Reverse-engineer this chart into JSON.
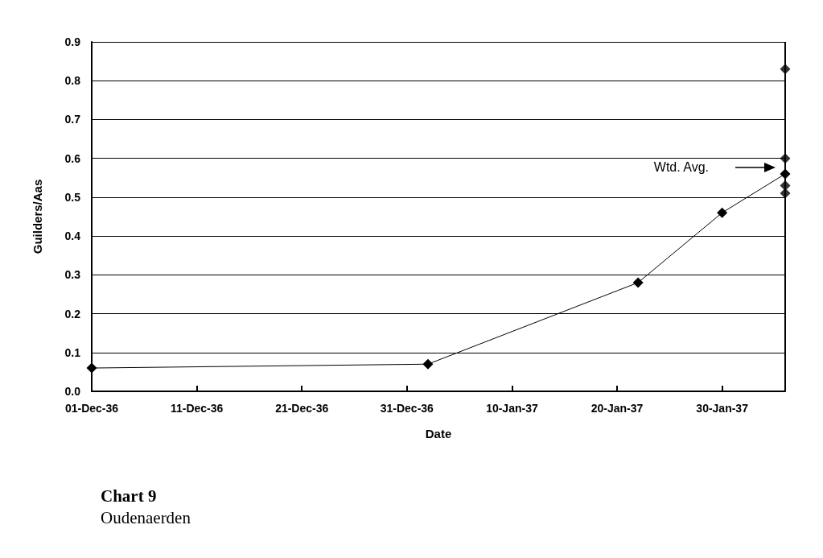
{
  "chart_data": {
    "type": "line",
    "title": "Chart 9",
    "subtitle": "Oudenaerden",
    "xlabel": "Date",
    "ylabel": "Guilders/Aas",
    "series": [
      {
        "color": "#000000",
        "x": [
          "1936-12-01",
          "1937-01-02",
          "1937-01-22",
          "1937-01-30",
          "1937-02-05"
        ],
        "values": [
          0.06,
          0.07,
          0.28,
          0.46,
          0.56
        ]
      },
      {
        "type": "scatter",
        "color": "#000000",
        "x": [
          "1937-02-05",
          "1937-02-05",
          "1937-02-05",
          "1937-02-05"
        ],
        "values": [
          0.83,
          0.6,
          0.53,
          0.51
        ]
      }
    ],
    "annotations": [
      "Wtd. Avg."
    ],
    "xlim": [
      "1936-12-01",
      "1937-02-05"
    ],
    "xticks": [
      {
        "value": "1936-12-01",
        "label": "01-Dec-36"
      },
      {
        "value": "1936-12-11",
        "label": "11-Dec-36"
      },
      {
        "value": "1936-12-21",
        "label": "21-Dec-36"
      },
      {
        "value": "1936-12-31",
        "label": "31-Dec-36"
      },
      {
        "value": "1937-01-10",
        "label": "10-Jan-37"
      },
      {
        "value": "1937-01-20",
        "label": "20-Jan-37"
      },
      {
        "value": "1937-01-30",
        "label": "30-Jan-37"
      }
    ],
    "ylim": [
      0,
      0.9
    ],
    "yticks": [
      {
        "value": 0,
        "label": "0.0"
      },
      {
        "value": 0.1,
        "label": "0.1"
      },
      {
        "value": 0.2,
        "label": "0.2"
      },
      {
        "value": 0.3,
        "label": "0.3"
      },
      {
        "value": 0.4,
        "label": "0.4"
      },
      {
        "value": 0.5,
        "label": "0.5"
      },
      {
        "value": 0.6,
        "label": "0.6"
      },
      {
        "value": 0.7,
        "label": "0.7"
      },
      {
        "value": 0.8,
        "label": "0.8"
      },
      {
        "value": 0.9,
        "label": "0.9"
      }
    ],
    "grid": "y",
    "marker": "diamond",
    "line_style": "solid"
  }
}
